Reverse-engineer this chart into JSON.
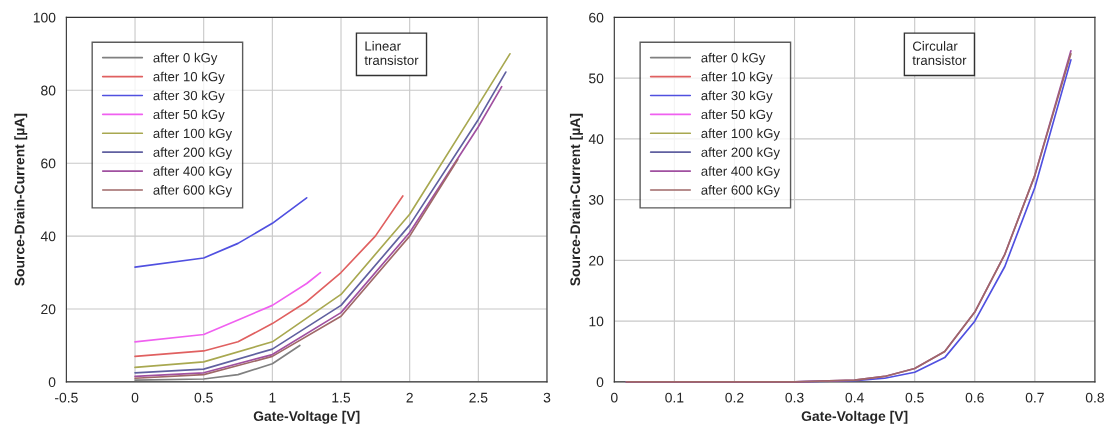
{
  "chart_data": [
    {
      "type": "line",
      "xlabel": "Gate-Voltage [V]",
      "ylabel": "Source-Drain-Current [µA]",
      "annotations": [
        "Linear\ntransistor"
      ],
      "xlim": [
        -0.5,
        3
      ],
      "xticks": [
        -0.5,
        0,
        0.5,
        1,
        1.5,
        2,
        2.5,
        3
      ],
      "ylim": [
        0,
        100
      ],
      "yticks": [
        0,
        20,
        40,
        60,
        80,
        100
      ],
      "grid": true,
      "legend": "top left",
      "series": [
        {
          "name": "after 0 kGy",
          "color": "#808080",
          "x": [
            0,
            0.5,
            0.75,
            1,
            1.2
          ],
          "values": [
            0.5,
            0.8,
            2,
            5,
            10
          ]
        },
        {
          "name": "after 10 kGy",
          "color": "#e06060",
          "x": [
            0,
            0.5,
            0.75,
            1,
            1.25,
            1.5,
            1.75,
            1.95
          ],
          "values": [
            7,
            8.5,
            11,
            16,
            22,
            30,
            40,
            51
          ]
        },
        {
          "name": "after 30 kGy",
          "color": "#5050e0",
          "x": [
            0,
            0.5,
            0.75,
            1,
            1.25
          ],
          "values": [
            31.5,
            34,
            38,
            43.5,
            50.5
          ]
        },
        {
          "name": "after 50 kGy",
          "color": "#f060f0",
          "x": [
            0,
            0.5,
            0.75,
            1,
            1.25,
            1.35
          ],
          "values": [
            11,
            13,
            17,
            21,
            27,
            30
          ]
        },
        {
          "name": "after 100 kGy",
          "color": "#a8a850",
          "x": [
            0,
            0.5,
            1,
            1.5,
            2,
            2.5,
            2.73
          ],
          "values": [
            4,
            5.5,
            11,
            24,
            46,
            76,
            90
          ]
        },
        {
          "name": "after 200 kGy",
          "color": "#6060a0",
          "x": [
            0,
            0.5,
            1,
            1.5,
            2,
            2.5,
            2.7
          ],
          "values": [
            2.5,
            3.5,
            9,
            21,
            43,
            72,
            85
          ]
        },
        {
          "name": "after 400 kGy",
          "color": "#a050a0",
          "x": [
            0,
            0.5,
            1,
            1.5,
            2,
            2.5,
            2.67
          ],
          "values": [
            1.5,
            2.5,
            7.5,
            19,
            41,
            70,
            81
          ]
        },
        {
          "name": "after 600 kGy",
          "color": "#a06868",
          "x": [
            0,
            0.5,
            1,
            1.5,
            2,
            2.35
          ],
          "values": [
            1,
            2,
            7,
            18,
            40,
            61
          ]
        }
      ]
    },
    {
      "type": "line",
      "xlabel": "Gate-Voltage [V]",
      "ylabel": "Source-Drain-Current [µA]",
      "annotations": [
        "Circular\ntransistor"
      ],
      "xlim": [
        0,
        0.8
      ],
      "xticks": [
        0,
        0.1,
        0.2,
        0.3,
        0.4,
        0.5,
        0.6,
        0.7,
        0.8
      ],
      "ylim": [
        0,
        60
      ],
      "yticks": [
        0,
        10,
        20,
        30,
        40,
        50,
        60
      ],
      "grid": true,
      "legend": "top left",
      "series": [
        {
          "name": "after 0 kGy",
          "color": "#808080"
        },
        {
          "name": "after 10 kGy",
          "color": "#e06060"
        },
        {
          "name": "after 30 kGy",
          "color": "#5050e0",
          "x": [
            0.02,
            0.3,
            0.4,
            0.45,
            0.5,
            0.55,
            0.6,
            0.65,
            0.7,
            0.76
          ],
          "values": [
            0,
            0,
            0.2,
            0.6,
            1.6,
            4,
            10,
            19,
            32,
            53
          ]
        },
        {
          "name": "after 50 kGy",
          "color": "#f060f0"
        },
        {
          "name": "after 100 kGy",
          "color": "#a8a850"
        },
        {
          "name": "after 200 kGy",
          "color": "#6060a0"
        },
        {
          "name": "after 400 kGy",
          "color": "#a050a0",
          "x": [
            0.02,
            0.3,
            0.4,
            0.45,
            0.5,
            0.55,
            0.6,
            0.65,
            0.7,
            0.76
          ],
          "values": [
            0,
            0,
            0.3,
            0.9,
            2.2,
            5,
            11.5,
            21,
            34,
            54.5
          ]
        },
        {
          "name": "after 600 kGy",
          "color": "#a06868",
          "x": [
            0.02,
            0.3,
            0.4,
            0.45,
            0.5,
            0.55,
            0.6,
            0.65,
            0.7,
            0.76
          ],
          "values": [
            0,
            0,
            0.3,
            0.9,
            2.2,
            5,
            11.5,
            21,
            34,
            54
          ]
        }
      ]
    }
  ]
}
